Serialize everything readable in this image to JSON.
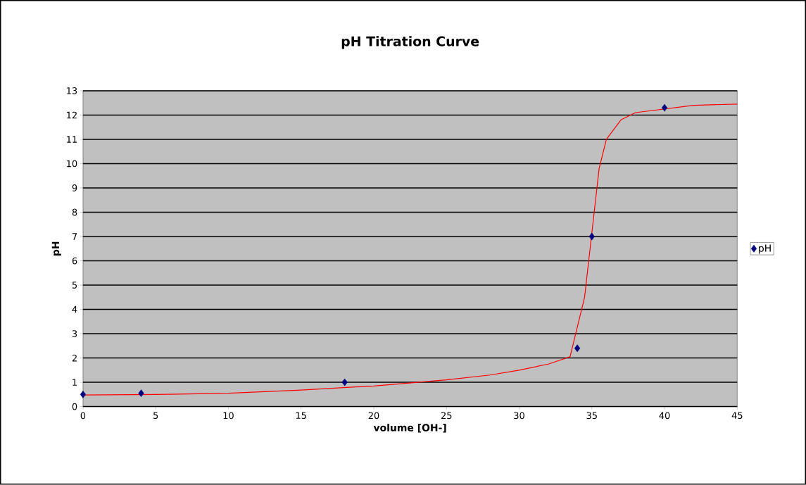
{
  "chart_data": {
    "type": "scatter",
    "title": "pH Titration Curve",
    "xlabel": "volume [OH-]",
    "ylabel": "pH",
    "xlim": [
      0,
      45
    ],
    "xticks": [
      0,
      5,
      10,
      15,
      20,
      25,
      30,
      35,
      40,
      45
    ],
    "ylim": [
      0,
      13
    ],
    "yticks": [
      0,
      1,
      2,
      3,
      4,
      5,
      6,
      7,
      8,
      9,
      10,
      11,
      12,
      13
    ],
    "grid": "y",
    "legend": "right",
    "series": [
      {
        "name": "pH",
        "color": "#000080",
        "marker": "diamond",
        "x": [
          0,
          4,
          18,
          34,
          35,
          40
        ],
        "values": [
          0.5,
          0.55,
          1.0,
          2.4,
          7.0,
          12.3
        ]
      },
      {
        "type": "line",
        "color": "#ff0000",
        "marker": "none",
        "x": [
          0,
          5,
          10,
          15,
          20,
          25,
          28,
          30,
          32,
          33.5,
          34.5,
          35.5,
          36,
          37,
          38,
          42,
          45
        ],
        "values": [
          0.48,
          0.5,
          0.55,
          0.68,
          0.85,
          1.1,
          1.3,
          1.5,
          1.75,
          2.05,
          4.5,
          9.8,
          11.0,
          11.8,
          12.1,
          12.4,
          12.45
        ]
      }
    ]
  }
}
